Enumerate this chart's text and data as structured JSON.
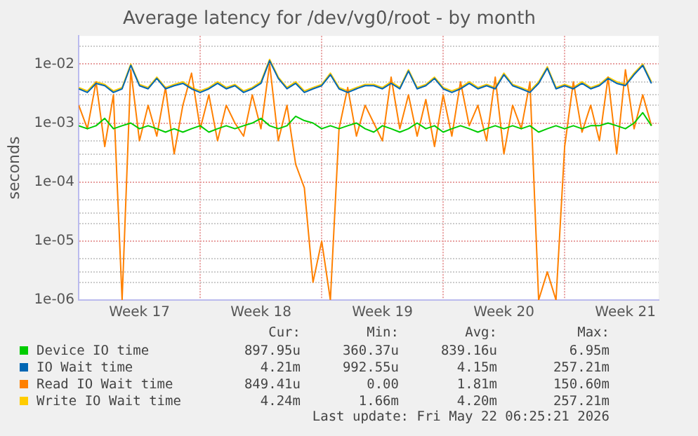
{
  "chart_data": {
    "type": "line",
    "title": "Average latency for /dev/vg0/root - by month",
    "ylabel": "seconds",
    "x": [
      "2026-04-20T00:00",
      "2026-04-20T12:00",
      "2026-04-21T00:00",
      "2026-04-21T12:00",
      "2026-04-22T00:00",
      "2026-04-22T12:00",
      "2026-04-23T00:00",
      "2026-04-23T12:00",
      "2026-04-24T00:00",
      "2026-04-24T12:00",
      "2026-04-25T00:00",
      "2026-04-25T12:00",
      "2026-04-26T00:00",
      "2026-04-26T12:00",
      "2026-04-27T00:00",
      "2026-04-27T12:00",
      "2026-04-28T00:00",
      "2026-04-28T12:00",
      "2026-04-29T00:00",
      "2026-04-29T12:00",
      "2026-04-30T00:00",
      "2026-04-30T12:00",
      "2026-05-01T00:00",
      "2026-05-01T12:00",
      "2026-05-02T00:00",
      "2026-05-02T12:00",
      "2026-05-03T00:00",
      "2026-05-03T12:00",
      "2026-05-04T00:00",
      "2026-05-04T12:00",
      "2026-05-05T00:00",
      "2026-05-05T12:00",
      "2026-05-06T00:00",
      "2026-05-06T12:00",
      "2026-05-07T00:00",
      "2026-05-07T12:00",
      "2026-05-08T00:00",
      "2026-05-08T12:00",
      "2026-05-09T00:00",
      "2026-05-09T12:00",
      "2026-05-10T00:00",
      "2026-05-10T12:00",
      "2026-05-11T00:00",
      "2026-05-11T12:00",
      "2026-05-12T00:00",
      "2026-05-12T12:00",
      "2026-05-13T00:00",
      "2026-05-13T12:00",
      "2026-05-14T00:00",
      "2026-05-14T12:00",
      "2026-05-15T00:00",
      "2026-05-15T12:00",
      "2026-05-16T00:00",
      "2026-05-16T12:00",
      "2026-05-17T00:00",
      "2026-05-17T12:00",
      "2026-05-18T00:00",
      "2026-05-18T12:00",
      "2026-05-19T00:00",
      "2026-05-19T12:00",
      "2026-05-20T00:00",
      "2026-05-20T12:00",
      "2026-05-21T00:00",
      "2026-05-21T12:00",
      "2026-05-22T00:00",
      "2026-05-22T12:00",
      "2026-05-23T00:00"
    ],
    "series": [
      {
        "name": "Device IO time",
        "color": "#00cc00",
        "values": [
          0.0009,
          0.0008,
          0.0009,
          0.0012,
          0.0008,
          0.0009,
          0.001,
          0.0008,
          0.0009,
          0.0008,
          0.0007,
          0.0008,
          0.0007,
          0.0008,
          0.0009,
          0.0007,
          0.0008,
          0.0009,
          0.0008,
          0.0009,
          0.001,
          0.0012,
          0.0009,
          0.0008,
          0.0009,
          0.0013,
          0.0011,
          0.001,
          0.0008,
          0.0009,
          0.0008,
          0.0009,
          0.001,
          0.0008,
          0.0007,
          0.0009,
          0.0008,
          0.0007,
          0.0008,
          0.001,
          0.0008,
          0.0009,
          0.0007,
          0.0008,
          0.0009,
          0.0008,
          0.0007,
          0.0008,
          0.0009,
          0.0008,
          0.0009,
          0.0008,
          0.0009,
          0.0007,
          0.0008,
          0.0009,
          0.0008,
          0.0009,
          0.0008,
          0.0009,
          0.0009,
          0.001,
          0.0009,
          0.0008,
          0.001,
          0.0015,
          0.0009
        ]
      },
      {
        "name": "IO Wait time",
        "color": "#0066b3",
        "values": [
          0.0038,
          0.0033,
          0.0047,
          0.0043,
          0.0033,
          0.0038,
          0.0095,
          0.0043,
          0.0038,
          0.0057,
          0.0038,
          0.0043,
          0.0047,
          0.0038,
          0.0033,
          0.0038,
          0.0047,
          0.0038,
          0.0043,
          0.0033,
          0.0038,
          0.0047,
          0.0114,
          0.0057,
          0.0038,
          0.0047,
          0.0033,
          0.0038,
          0.0043,
          0.0066,
          0.0038,
          0.0033,
          0.0038,
          0.0043,
          0.0043,
          0.0038,
          0.0047,
          0.0038,
          0.0076,
          0.0038,
          0.0043,
          0.0057,
          0.0038,
          0.0033,
          0.0038,
          0.0047,
          0.0038,
          0.0043,
          0.0038,
          0.0066,
          0.0043,
          0.0038,
          0.0033,
          0.0047,
          0.0085,
          0.0038,
          0.0043,
          0.0038,
          0.0047,
          0.0038,
          0.0043,
          0.0057,
          0.0047,
          0.0043,
          0.0066,
          0.0095,
          0.0047
        ]
      },
      {
        "name": "Read IO Wait time",
        "color": "#ff8000",
        "values": [
          0.002,
          0.0008,
          0.005,
          0.0004,
          0.003,
          1e-06,
          0.008,
          0.0005,
          0.002,
          0.0006,
          0.004,
          0.0003,
          0.002,
          0.007,
          0.0008,
          0.003,
          0.0005,
          0.002,
          0.001,
          0.0006,
          0.003,
          0.0008,
          0.01,
          0.0005,
          0.002,
          0.0002,
          8e-05,
          2e-06,
          1e-05,
          1e-06,
          0.0008,
          0.004,
          0.0006,
          0.002,
          0.001,
          0.0005,
          0.006,
          0.0008,
          0.003,
          0.0006,
          0.0025,
          0.0004,
          0.003,
          0.0006,
          0.005,
          0.0009,
          0.002,
          0.0005,
          0.006,
          0.0003,
          0.002,
          0.0008,
          0.005,
          1e-06,
          3e-06,
          1e-06,
          0.0004,
          0.005,
          0.0007,
          0.002,
          0.0005,
          0.006,
          0.0003,
          0.008,
          0.0008,
          0.003,
          0.0009
        ]
      },
      {
        "name": "Write IO Wait time",
        "color": "#ffcc00",
        "values": [
          0.004,
          0.0035,
          0.005,
          0.0045,
          0.0035,
          0.004,
          0.01,
          0.0045,
          0.004,
          0.006,
          0.004,
          0.0045,
          0.005,
          0.004,
          0.0035,
          0.004,
          0.005,
          0.004,
          0.0045,
          0.0035,
          0.004,
          0.005,
          0.012,
          0.006,
          0.004,
          0.005,
          0.0035,
          0.004,
          0.0045,
          0.007,
          0.004,
          0.0035,
          0.004,
          0.0045,
          0.0045,
          0.004,
          0.005,
          0.004,
          0.008,
          0.004,
          0.0045,
          0.006,
          0.004,
          0.0035,
          0.004,
          0.005,
          0.004,
          0.0045,
          0.004,
          0.007,
          0.0045,
          0.004,
          0.0035,
          0.005,
          0.009,
          0.004,
          0.0045,
          0.004,
          0.005,
          0.004,
          0.0045,
          0.006,
          0.005,
          0.0045,
          0.007,
          0.01,
          0.005
        ]
      }
    ],
    "xlim": [
      "2026-04-20T00:00",
      "2026-05-23T10:00"
    ],
    "xticks": [
      {
        "value": "2026-04-23T12:00",
        "label": "Week 17"
      },
      {
        "value": "2026-04-27T00:00",
        "label": null
      },
      {
        "value": "2026-04-30T12:00",
        "label": "Week 18"
      },
      {
        "value": "2026-05-04T00:00",
        "label": null
      },
      {
        "value": "2026-05-07T12:00",
        "label": "Week 19"
      },
      {
        "value": "2026-05-11T00:00",
        "label": null
      },
      {
        "value": "2026-05-14T12:00",
        "label": "Week 20"
      },
      {
        "value": "2026-05-18T00:00",
        "label": null
      },
      {
        "value": "2026-05-21T12:00",
        "label": "Week 21"
      }
    ],
    "ylim": [
      1e-06,
      0.03
    ],
    "yticks": [
      {
        "value": 1e-06,
        "label": "1e-06"
      },
      {
        "value": 2e-06,
        "label": null
      },
      {
        "value": 3e-06,
        "label": null
      },
      {
        "value": 5e-06,
        "label": null
      },
      {
        "value": 1e-05,
        "label": "1e-05"
      },
      {
        "value": 2e-05,
        "label": null
      },
      {
        "value": 3e-05,
        "label": null
      },
      {
        "value": 5e-05,
        "label": null
      },
      {
        "value": 0.0001,
        "label": "1e-04"
      },
      {
        "value": 0.0002,
        "label": null
      },
      {
        "value": 0.0003,
        "label": null
      },
      {
        "value": 0.0005,
        "label": null
      },
      {
        "value": 0.001,
        "label": "1e-03"
      },
      {
        "value": 0.002,
        "label": null
      },
      {
        "value": 0.003,
        "label": null
      },
      {
        "value": 0.005,
        "label": null
      },
      {
        "value": 0.01,
        "label": "1e-02"
      },
      {
        "value": 0.02,
        "label": null
      }
    ],
    "log": "y",
    "grid": true,
    "legend": "bottom",
    "annotations": [
      "Cur:",
      "Min:",
      "Avg:",
      "Max:",
      "897.95u",
      "360.37u",
      "839.16u",
      "6.95m",
      "4.21m",
      "992.55u",
      "4.15m",
      "257.21m",
      "849.41u",
      "0.00",
      "1.81m",
      "150.60m",
      "4.24m",
      "1.66m",
      "4.20m",
      "257.21m",
      "Last update: Fri May 22 06:25:21 2026"
    ]
  }
}
